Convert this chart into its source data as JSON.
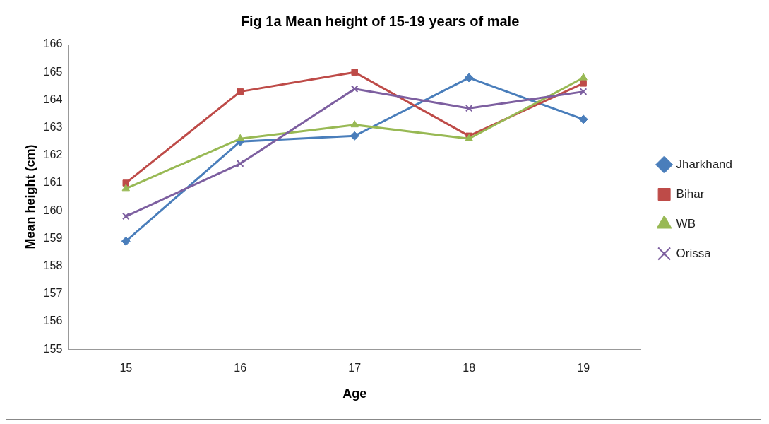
{
  "chart_data": {
    "type": "line",
    "title": "Fig 1a Mean height of 15-19 years of male",
    "xlabel": "Age",
    "ylabel": "Mean height (cm)",
    "categories": [
      "15",
      "16",
      "17",
      "18",
      "19"
    ],
    "ylim": [
      155,
      166
    ],
    "yticks": [
      155,
      156,
      157,
      158,
      159,
      160,
      161,
      162,
      163,
      164,
      165,
      166
    ],
    "grid": false,
    "legend": "right",
    "series": [
      {
        "name": "Jharkhand",
        "color": "#4a7ebb",
        "marker": "diamond",
        "values": [
          158.9,
          162.5,
          162.7,
          164.8,
          163.3
        ]
      },
      {
        "name": "Bihar",
        "color": "#be4b48",
        "marker": "square",
        "values": [
          161.0,
          164.3,
          165.0,
          162.7,
          164.6
        ]
      },
      {
        "name": "WB",
        "color": "#98b954",
        "marker": "triangle",
        "values": [
          160.8,
          162.6,
          163.1,
          162.6,
          164.8
        ]
      },
      {
        "name": "Orissa",
        "color": "#7d5fa0",
        "marker": "cross",
        "values": [
          159.8,
          161.7,
          164.4,
          163.7,
          164.3
        ]
      }
    ]
  }
}
